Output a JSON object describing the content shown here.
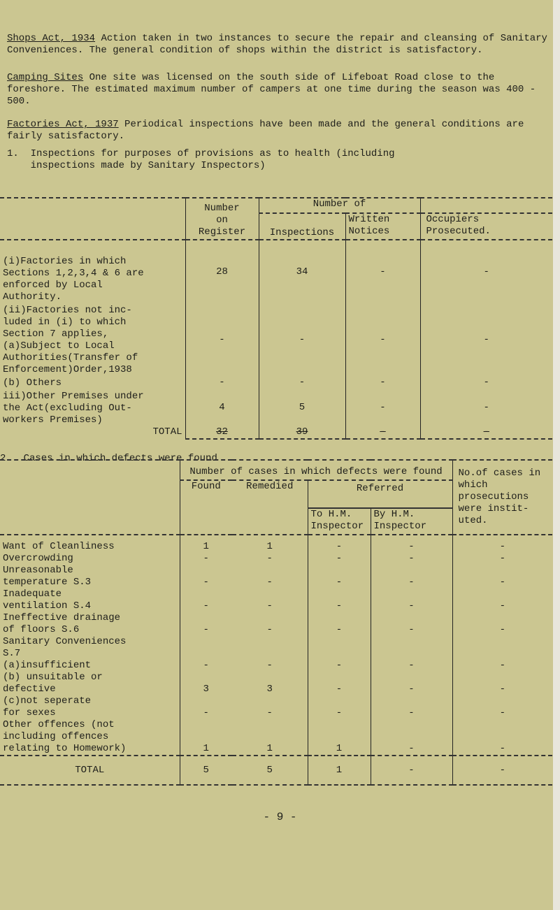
{
  "intro": {
    "shops_heading": "Shops Act, 1934",
    "shops_text": "Action taken in two instances to secure the repair and cleansing of Sanitary Conveniences.  The general condition of shops within the district is satisfactory.",
    "camping_heading": "Camping Sites",
    "camping_text": "One site was licensed on the south side of Lifeboat Road close to the foreshore.  The estimated maximum number of campers at one time during the season was 400 - 500.",
    "factories_heading": "Factories Act, 1937",
    "factories_text": "Periodical inspections have been made and the general conditions are fairly satisfactory."
  },
  "section1": {
    "title": "1.  Inspections for purposes of provisions as to health (including\n    inspections made by Sanitary Inspectors)",
    "headers": {
      "register": "Number\non\nRegister",
      "number_of": "Number of",
      "inspections": "Inspections",
      "notices": "Written\nNotices",
      "prosecuted": "Occupiers\nProsecuted."
    },
    "rows": [
      {
        "label": "(i)Factories in which\nSections 1,2,3,4 & 6 are\nenforced by Local\nAuthority.",
        "values": [
          "28",
          "34",
          "-",
          "-"
        ]
      },
      {
        "label": "(ii)Factories not inc-\nluded in (i) to which\nSection 7 applies,\n(a)Subject to Local\nAuthorities(Transfer of\nEnforcement)Order,1938",
        "values": [
          "-",
          "-",
          "-",
          "-"
        ]
      },
      {
        "label": "(b) Others",
        "values": [
          "-",
          "-",
          "-",
          "-"
        ]
      },
      {
        "label": "iii)Other Premises under\nthe Act(excluding Out-\nworkers Premises)",
        "values": [
          "4",
          "5",
          "-",
          "-"
        ]
      }
    ],
    "total": {
      "label": "TOTAL",
      "values": [
        "32",
        "39",
        "-",
        "-"
      ]
    }
  },
  "section2": {
    "title": "2.  Cases in which defects were found",
    "headers": {
      "group": "Number of cases in which defects were found",
      "found": "Found",
      "remedied": "Remedied",
      "referred": "Referred",
      "to_hm": "To H.M.\nInspector",
      "by_hm": "By H.M.\nInspector",
      "prosecutions": "No.of cases in which prosecutions were instit-uted."
    },
    "rows": [
      {
        "label": "Want of Cleanliness",
        "values": [
          "1",
          "1",
          "-",
          "-",
          "-"
        ]
      },
      {
        "label": "Overcrowding",
        "values": [
          "-",
          "-",
          "-",
          "-",
          "-"
        ]
      },
      {
        "label": "Unreasonable\ntemperature S.3",
        "values": [
          "-",
          "-",
          "-",
          "-",
          "-"
        ]
      },
      {
        "label": "Inadequate\nventilation S.4",
        "values": [
          "-",
          "-",
          "-",
          "-",
          "-"
        ]
      },
      {
        "label": "Ineffective drainage\nof floors S.6",
        "values": [
          "-",
          "-",
          "-",
          "-",
          "-"
        ]
      },
      {
        "label": "Sanitary Conveniences\n S.7",
        "values": [
          "",
          "",
          "",
          "",
          ""
        ]
      },
      {
        "label": "(a)insufficient",
        "values": [
          "-",
          "-",
          "-",
          "-",
          "-"
        ]
      },
      {
        "label": "(b) unsuitable or\n    defective",
        "values": [
          "3",
          "3",
          "-",
          "-",
          "-"
        ]
      },
      {
        "label": "(c)not seperate\n    for sexes",
        "values": [
          "-",
          "-",
          "-",
          "-",
          "-"
        ]
      },
      {
        "label": "Other offences (not\nincluding offences\nrelating to Homework)",
        "values": [
          "1",
          "1",
          "1",
          "-",
          "-"
        ]
      }
    ],
    "total": {
      "label": "TOTAL",
      "values": [
        "5",
        "5",
        "1",
        "-",
        "-"
      ]
    }
  },
  "page_number": "- 9 -"
}
